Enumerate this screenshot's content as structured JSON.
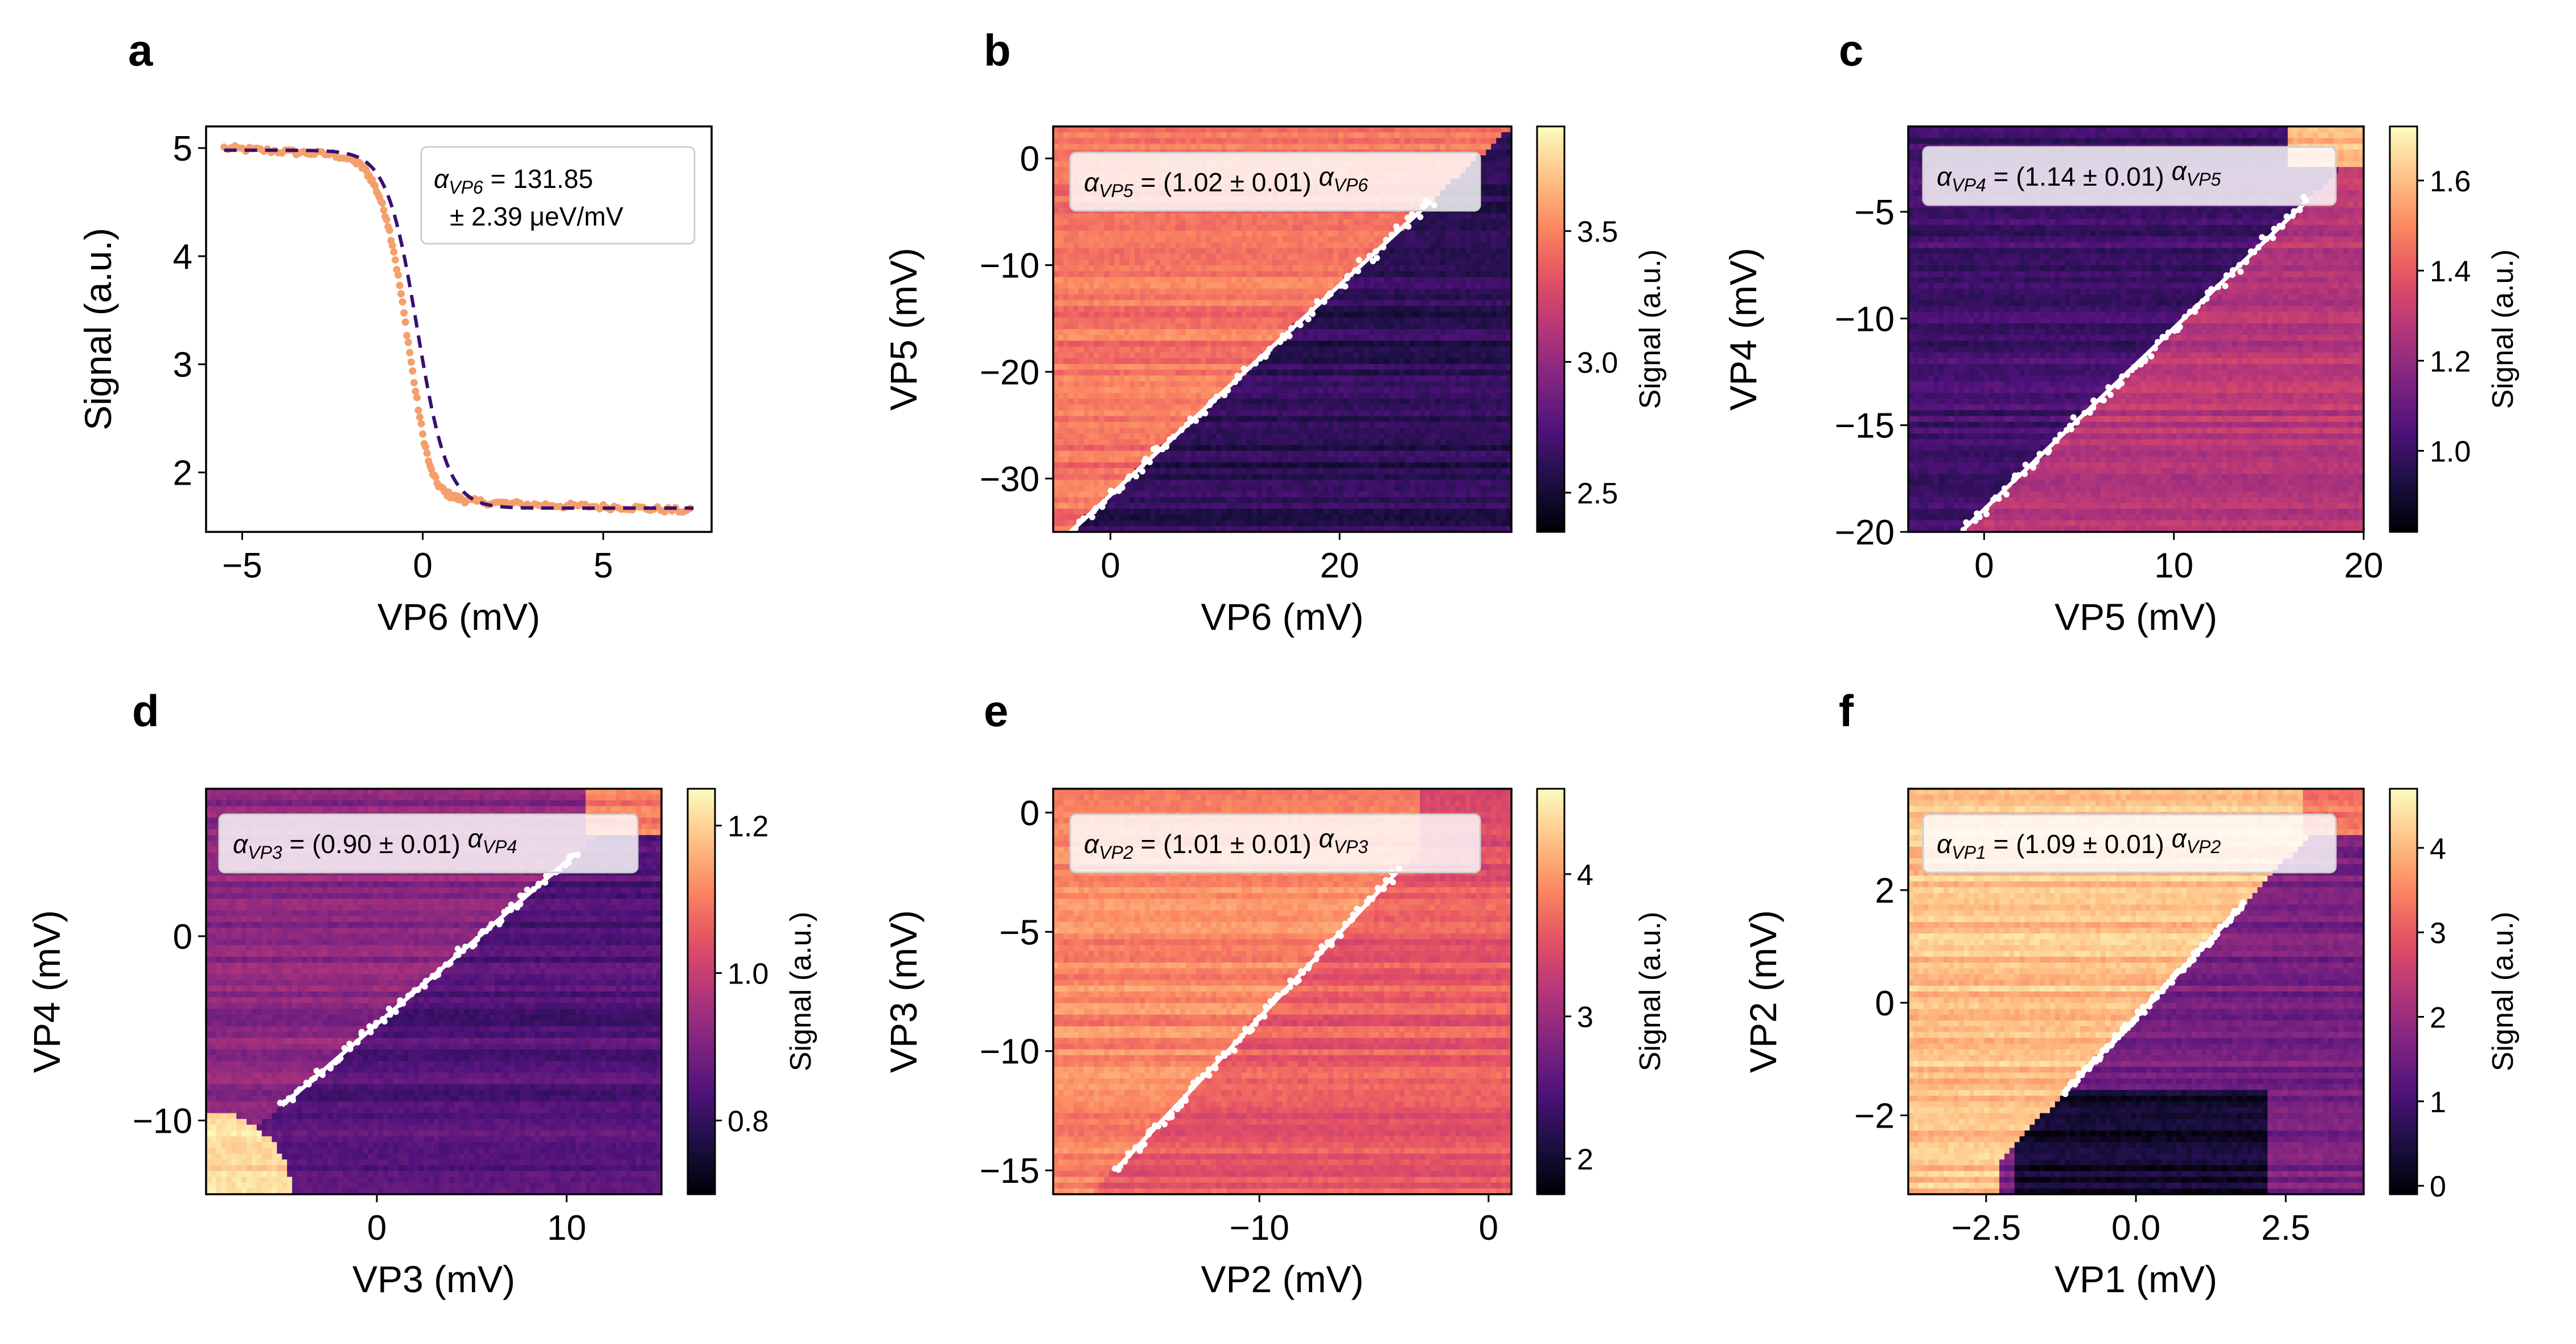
{
  "chart_data": [
    {
      "panel": "a",
      "type": "line",
      "xlabel": "VP6 (mV)",
      "ylabel": "Signal (a.u.)",
      "xlim": [
        -6,
        8
      ],
      "ylim": [
        1.45,
        5.2
      ],
      "xticks": [
        -5,
        0,
        5
      ],
      "yticks": [
        2,
        3,
        4,
        5
      ],
      "annotation": {
        "alpha": "α",
        "sub": "VP6",
        "line1": " = 131.85",
        "line2": "± 2.39 μeV/mV"
      },
      "fit": {
        "high": 4.98,
        "low": 1.67,
        "center": -0.15,
        "width": 0.42,
        "slope": -0.025
      },
      "series": [
        {
          "x": [
            -5.5,
            -5.0,
            -4.5,
            -4.0,
            -3.5,
            -3.0,
            -2.5,
            -2.0,
            -1.8,
            -1.6,
            -1.4,
            -1.2,
            -1.0,
            -0.8,
            -0.6,
            -0.4,
            -0.2,
            0.0,
            0.2,
            0.4,
            0.6,
            0.8,
            1.0,
            1.2,
            1.5,
            2.0,
            2.5,
            3.0,
            3.5,
            4.0,
            4.5,
            5.0,
            5.5,
            6.0,
            6.5,
            7.0,
            7.5
          ],
          "y": [
            5.0,
            4.99,
            4.98,
            4.97,
            4.96,
            4.95,
            4.94,
            4.9,
            4.86,
            4.8,
            4.7,
            4.55,
            4.35,
            4.05,
            3.65,
            3.2,
            2.75,
            2.35,
            2.05,
            1.9,
            1.82,
            1.78,
            1.76,
            1.74,
            1.73,
            1.72,
            1.71,
            1.7,
            1.7,
            1.69,
            1.69,
            1.68,
            1.68,
            1.67,
            1.66,
            1.65,
            1.64
          ]
        }
      ],
      "colors": {
        "points": "#f4a06c",
        "fit": "#3b0f70"
      }
    },
    {
      "panel": "b",
      "type": "heatmap",
      "xlabel": "VP6 (mV)",
      "ylabel": "VP5 (mV)",
      "colorbar_label": "Signal (a.u.)",
      "xlim": [
        -5,
        35
      ],
      "ylim": [
        -35,
        3
      ],
      "xticks": [
        0,
        20
      ],
      "yticks": [
        0,
        -10,
        -20,
        -30
      ],
      "clim": [
        2.35,
        3.9
      ],
      "cticks": [
        2.5,
        3.0,
        3.5
      ],
      "upper_value": 3.45,
      "lower_value": 2.6,
      "transition_line": {
        "x": [
          -3.5,
          28
        ],
        "y": [
          -35,
          -4
        ]
      },
      "annotation": {
        "alpha1": "α",
        "sub1": "VP5",
        "text": " = (1.02 ± 0.01) ",
        "alpha2": "α",
        "sub2": "VP6"
      }
    },
    {
      "panel": "c",
      "type": "heatmap",
      "xlabel": "VP5 (mV)",
      "ylabel": "VP4 (mV)",
      "colorbar_label": "Signal (a.u.)",
      "xlim": [
        -4,
        20
      ],
      "ylim": [
        -20,
        -1
      ],
      "xticks": [
        0,
        10,
        20
      ],
      "yticks": [
        -5,
        -10,
        -15,
        -20
      ],
      "clim": [
        0.82,
        1.72
      ],
      "cticks": [
        1.0,
        1.2,
        1.4,
        1.6
      ],
      "upper_value": 1.02,
      "lower_value": 1.28,
      "transition_line": {
        "x": [
          -1,
          17
        ],
        "y": [
          -19.8,
          -4.5
        ]
      },
      "annotation": {
        "alpha1": "α",
        "sub1": "VP4",
        "text": " = (1.14 ± 0.01) ",
        "alpha2": "α",
        "sub2": "VP5"
      }
    },
    {
      "panel": "d",
      "type": "heatmap",
      "xlabel": "VP3 (mV)",
      "ylabel": "VP4 (mV)",
      "colorbar_label": "Signal (a.u.)",
      "xlim": [
        -9,
        15
      ],
      "ylim": [
        -14,
        8
      ],
      "xticks": [
        0,
        10
      ],
      "yticks": [
        0,
        -10
      ],
      "clim": [
        0.7,
        1.25
      ],
      "cticks": [
        0.8,
        1.0,
        1.2
      ],
      "upper_value": 0.92,
      "lower_value": 0.84,
      "transition_line": {
        "x": [
          -5,
          10.5
        ],
        "y": [
          -9.2,
          4.5
        ]
      },
      "annotation": {
        "alpha1": "α",
        "sub1": "VP3",
        "text": " = (0.90 ± 0.01) ",
        "alpha2": "α",
        "sub2": "VP4"
      }
    },
    {
      "panel": "e",
      "type": "heatmap",
      "xlabel": "VP2 (mV)",
      "ylabel": "VP3 (mV)",
      "colorbar_label": "Signal (a.u.)",
      "xlim": [
        -19,
        1
      ],
      "ylim": [
        -16,
        1
      ],
      "xticks": [
        -10,
        0
      ],
      "yticks": [
        0,
        -5,
        -10,
        -15
      ],
      "clim": [
        1.75,
        4.6
      ],
      "cticks": [
        2,
        3,
        4
      ],
      "upper_value": 3.9,
      "lower_value": 3.6,
      "transition_line": {
        "x": [
          -16.3,
          -4
        ],
        "y": [
          -15,
          -2.5
        ]
      },
      "annotation": {
        "alpha1": "α",
        "sub1": "VP2",
        "text": " = (1.01 ± 0.01) ",
        "alpha2": "α",
        "sub2": "VP3"
      }
    },
    {
      "panel": "f",
      "type": "heatmap",
      "xlabel": "VP1 (mV)",
      "ylabel": "VP2 (mV)",
      "colorbar_label": "Signal (a.u.)",
      "xlim": [
        -3.8,
        3.8
      ],
      "ylim": [
        -3.4,
        3.8
      ],
      "xticks": [
        -2.5,
        0.0,
        2.5
      ],
      "yticks": [
        2,
        0,
        -2
      ],
      "clim": [
        -0.1,
        4.7
      ],
      "cticks": [
        0,
        1,
        2,
        3,
        4
      ],
      "upper_value": 4.1,
      "lower_value": 1.6,
      "transition_line": {
        "x": [
          -1.2,
          1.8
        ],
        "y": [
          -1.6,
          1.75
        ]
      },
      "annotation": {
        "alpha1": "α",
        "sub1": "VP1",
        "text": " = (1.09 ± 0.01) ",
        "alpha2": "α",
        "sub2": "VP2"
      }
    }
  ]
}
